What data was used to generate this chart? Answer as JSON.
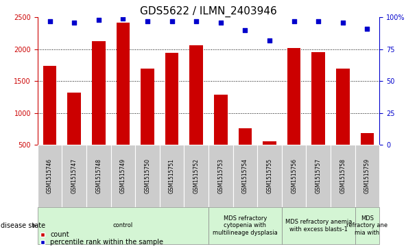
{
  "title": "GDS5622 / ILMN_2403946",
  "samples": [
    "GSM1515746",
    "GSM1515747",
    "GSM1515748",
    "GSM1515749",
    "GSM1515750",
    "GSM1515751",
    "GSM1515752",
    "GSM1515753",
    "GSM1515754",
    "GSM1515755",
    "GSM1515756",
    "GSM1515757",
    "GSM1515758",
    "GSM1515759"
  ],
  "counts": [
    1740,
    1320,
    2130,
    2420,
    1700,
    1950,
    2060,
    1290,
    760,
    560,
    2020,
    1960,
    1700,
    690
  ],
  "percentiles": [
    97,
    96,
    98,
    99,
    97,
    97,
    97,
    96,
    90,
    82,
    97,
    97,
    96,
    91
  ],
  "ylim_left": [
    500,
    2500
  ],
  "ylim_right": [
    0,
    100
  ],
  "yticks_left": [
    500,
    1000,
    1500,
    2000,
    2500
  ],
  "yticks_right": [
    0,
    25,
    50,
    75,
    100
  ],
  "ytick_right_labels": [
    "0",
    "25",
    "50",
    "75",
    "100%"
  ],
  "bar_color": "#cc0000",
  "scatter_color": "#0000cc",
  "gridline_vals": [
    1000,
    1500,
    2000
  ],
  "group_boundaries": [
    {
      "start": 0,
      "end": 7,
      "label": "control",
      "color": "#d4f5d4"
    },
    {
      "start": 7,
      "end": 10,
      "label": "MDS refractory\ncytopenia with\nmultilineage dysplasia",
      "color": "#d4f5d4"
    },
    {
      "start": 10,
      "end": 13,
      "label": "MDS refractory anemia\nwith excess blasts-1",
      "color": "#d4f5d4"
    },
    {
      "start": 13,
      "end": 14,
      "label": "MDS\nrefractory ane\nmia with",
      "color": "#d4f5d4"
    }
  ],
  "sample_box_color": "#cccccc",
  "legend_count": "count",
  "legend_pct": "percentile rank within the sample",
  "disease_state_label": "disease state",
  "title_fontsize": 11,
  "tick_fontsize": 7,
  "sample_fontsize": 5.5,
  "disease_fontsize": 6,
  "legend_fontsize": 7,
  "bar_width": 0.55
}
